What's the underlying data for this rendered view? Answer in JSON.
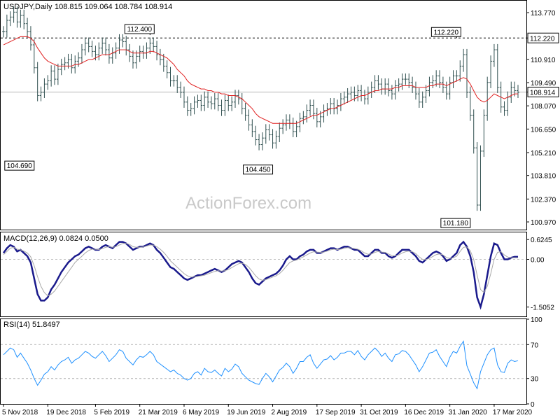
{
  "chart_data": [
    {
      "type": "ohlc",
      "title": "USDJPY,Daily",
      "ohlc_text": "108.815 109.064 108.784 108.914",
      "ohlc": {
        "open": 108.815,
        "high": 109.064,
        "low": 108.784,
        "close": 108.914
      },
      "watermark": "ActionForex.com",
      "ylim": [
        100.5,
        114.5
      ],
      "yticks": [
        113.77,
        112.22,
        110.91,
        109.49,
        108.914,
        108.07,
        106.65,
        105.21,
        103.81,
        102.37,
        100.97
      ],
      "ytick_labels": [
        "113.770",
        "112.220",
        "110.910",
        "109.490",
        "108.914",
        "108.070",
        "106.650",
        "105.210",
        "103.810",
        "102.370",
        "100.970"
      ],
      "hlines": [
        {
          "value": 112.22,
          "style": "dashed",
          "color": "#000000"
        },
        {
          "value": 108.914,
          "style": "solid",
          "color": "#b4b4b4"
        }
      ],
      "axis_boxes": [
        {
          "value": 112.22,
          "text": "112.220"
        },
        {
          "value": 108.914,
          "text": "108.914"
        }
      ],
      "annotations": [
        {
          "text": "104.690",
          "x_index": 9,
          "value": 104.69
        },
        {
          "text": "112.400",
          "x_index": 43,
          "value": 112.4
        },
        {
          "text": "104.450",
          "x_index": 79,
          "value": 104.45
        },
        {
          "text": "112.220",
          "x_index": 133,
          "value": 112.22
        },
        {
          "text": "101.180",
          "x_index": 137,
          "value": 101.18
        }
      ],
      "series": [
        {
          "name": "price",
          "color": "#2f4f4f",
          "values": [
            112.6,
            113.3,
            113.5,
            113.8,
            113.2,
            113.6,
            113.1,
            112.6,
            111.8,
            110.4,
            108.7,
            108.9,
            109.4,
            109.6,
            110.2,
            109.7,
            110.3,
            110.6,
            110.7,
            110.9,
            110.4,
            110.8,
            111.0,
            111.5,
            111.9,
            111.7,
            111.4,
            111.2,
            111.6,
            111.9,
            111.5,
            111.0,
            111.3,
            111.6,
            112.1,
            112.0,
            111.5,
            111.1,
            110.7,
            111.1,
            111.4,
            111.3,
            111.6,
            111.9,
            111.7,
            111.2,
            110.9,
            110.5,
            110.1,
            109.6,
            109.6,
            109.2,
            108.9,
            108.3,
            107.8,
            107.9,
            108.3,
            108.4,
            108.1,
            108.6,
            108.3,
            108.2,
            108.5,
            108.1,
            107.8,
            108.4,
            108.1,
            108.3,
            108.7,
            108.5,
            107.9,
            107.5,
            106.9,
            106.5,
            106.0,
            105.7,
            106.1,
            106.6,
            106.3,
            105.8,
            106.2,
            106.7,
            106.9,
            107.2,
            107.0,
            106.5,
            106.8,
            107.3,
            107.4,
            107.8,
            108.1,
            107.6,
            107.1,
            107.4,
            107.8,
            107.9,
            108.2,
            107.9,
            108.1,
            108.5,
            108.6,
            108.8,
            108.9,
            108.7,
            109.0,
            108.7,
            108.5,
            108.9,
            109.2,
            109.6,
            109.4,
            109.1,
            109.4,
            109.0,
            108.8,
            109.3,
            109.4,
            109.7,
            109.7,
            109.5,
            109.2,
            108.8,
            108.3,
            108.6,
            109.0,
            109.5,
            109.6,
            109.9,
            109.5,
            109.2,
            108.8,
            109.5,
            109.9,
            109.9,
            110.5,
            111.2,
            108.9,
            107.5,
            105.5,
            102.0,
            105.3,
            107.5,
            109.5,
            110.8,
            111.5,
            109.2,
            108.0,
            107.8,
            108.6,
            109.2,
            109.0,
            108.9
          ]
        },
        {
          "name": "SMA",
          "color": "#e02020",
          "values": [
            111.8,
            111.9,
            112.0,
            112.1,
            112.2,
            112.3,
            112.3,
            112.3,
            112.2,
            112.0,
            111.6,
            111.3,
            111.0,
            110.8,
            110.7,
            110.6,
            110.5,
            110.5,
            110.5,
            110.5,
            110.5,
            110.6,
            110.6,
            110.7,
            110.8,
            110.9,
            110.9,
            111.0,
            111.1,
            111.2,
            111.2,
            111.2,
            111.3,
            111.4,
            111.5,
            111.5,
            111.5,
            111.4,
            111.3,
            111.3,
            111.3,
            111.3,
            111.3,
            111.4,
            111.4,
            111.3,
            111.2,
            111.1,
            111.0,
            110.8,
            110.6,
            110.3,
            110.1,
            109.9,
            109.6,
            109.4,
            109.3,
            109.2,
            109.1,
            109.1,
            109.0,
            109.0,
            108.9,
            108.9,
            108.8,
            108.8,
            108.7,
            108.7,
            108.7,
            108.6,
            108.5,
            108.3,
            108.1,
            107.9,
            107.6,
            107.4,
            107.3,
            107.2,
            107.1,
            107.0,
            107.0,
            107.0,
            107.0,
            107.0,
            107.0,
            107.0,
            107.0,
            107.1,
            107.2,
            107.3,
            107.4,
            107.5,
            107.5,
            107.6,
            107.7,
            107.8,
            107.9,
            107.9,
            108.0,
            108.1,
            108.2,
            108.3,
            108.4,
            108.5,
            108.6,
            108.7,
            108.7,
            108.8,
            108.9,
            109.0,
            109.0,
            109.1,
            109.1,
            109.1,
            109.1,
            109.2,
            109.2,
            109.3,
            109.3,
            109.3,
            109.3,
            109.2,
            109.2,
            109.2,
            109.2,
            109.3,
            109.3,
            109.4,
            109.4,
            109.4,
            109.3,
            109.4,
            109.5,
            109.6,
            109.7,
            109.8,
            109.7,
            109.4,
            109.0,
            108.6,
            108.4,
            108.3,
            108.4,
            108.6,
            108.8,
            108.7,
            108.6,
            108.5,
            108.6,
            108.7,
            108.8,
            108.8
          ]
        }
      ]
    },
    {
      "type": "line",
      "title": "MACD(12,26,9) 0.0824 0.0500",
      "ylim": [
        -1.8,
        0.85
      ],
      "yticks": [
        0.6245,
        0.0,
        -1.5052
      ],
      "ytick_labels": [
        "0.6245",
        "0.00",
        "-1.5052"
      ],
      "series": [
        {
          "name": "MACD",
          "color": "#1a1a8c",
          "values": [
            0.2,
            0.35,
            0.45,
            0.4,
            0.25,
            0.3,
            0.2,
            0.1,
            -0.1,
            -0.6,
            -1.1,
            -1.3,
            -1.3,
            -1.2,
            -0.95,
            -0.8,
            -0.6,
            -0.4,
            -0.25,
            -0.1,
            0.0,
            0.1,
            0.15,
            0.25,
            0.35,
            0.4,
            0.35,
            0.3,
            0.3,
            0.4,
            0.45,
            0.4,
            0.35,
            0.45,
            0.55,
            0.55,
            0.5,
            0.4,
            0.3,
            0.35,
            0.4,
            0.4,
            0.45,
            0.5,
            0.45,
            0.3,
            0.2,
            0.05,
            -0.1,
            -0.25,
            -0.3,
            -0.4,
            -0.5,
            -0.6,
            -0.65,
            -0.6,
            -0.55,
            -0.5,
            -0.5,
            -0.45,
            -0.4,
            -0.35,
            -0.3,
            -0.35,
            -0.4,
            -0.35,
            -0.25,
            -0.15,
            -0.1,
            -0.05,
            -0.1,
            -0.25,
            -0.4,
            -0.6,
            -0.75,
            -0.8,
            -0.7,
            -0.6,
            -0.55,
            -0.5,
            -0.45,
            -0.35,
            -0.2,
            0.0,
            0.1,
            0.0,
            0.0,
            0.1,
            0.15,
            0.25,
            0.3,
            0.3,
            0.2,
            0.2,
            0.25,
            0.3,
            0.35,
            0.35,
            0.3,
            0.35,
            0.4,
            0.4,
            0.35,
            0.3,
            0.3,
            0.2,
            0.1,
            0.1,
            0.2,
            0.3,
            0.3,
            0.2,
            0.2,
            0.1,
            0.05,
            0.1,
            0.2,
            0.3,
            0.3,
            0.3,
            0.2,
            0.1,
            -0.05,
            -0.1,
            0.0,
            0.1,
            0.2,
            0.25,
            0.2,
            0.1,
            -0.05,
            0.0,
            0.1,
            0.2,
            0.45,
            0.55,
            0.4,
            0.1,
            -0.4,
            -1.2,
            -1.5,
            -1.1,
            -0.5,
            0.1,
            0.5,
            0.45,
            0.2,
            0.0,
            0.0,
            0.05,
            0.08,
            0.08
          ]
        },
        {
          "name": "Signal",
          "color": "#a9a9a9",
          "values": [
            0.15,
            0.25,
            0.35,
            0.38,
            0.32,
            0.3,
            0.26,
            0.2,
            0.08,
            -0.2,
            -0.55,
            -0.85,
            -1.05,
            -1.15,
            -1.1,
            -1.0,
            -0.85,
            -0.7,
            -0.55,
            -0.4,
            -0.25,
            -0.1,
            0.0,
            0.1,
            0.2,
            0.28,
            0.32,
            0.32,
            0.31,
            0.34,
            0.38,
            0.4,
            0.38,
            0.4,
            0.45,
            0.5,
            0.5,
            0.47,
            0.4,
            0.38,
            0.38,
            0.39,
            0.42,
            0.45,
            0.45,
            0.4,
            0.32,
            0.22,
            0.1,
            -0.05,
            -0.15,
            -0.25,
            -0.35,
            -0.45,
            -0.52,
            -0.56,
            -0.56,
            -0.54,
            -0.52,
            -0.5,
            -0.46,
            -0.42,
            -0.38,
            -0.36,
            -0.37,
            -0.36,
            -0.32,
            -0.26,
            -0.2,
            -0.14,
            -0.12,
            -0.16,
            -0.25,
            -0.38,
            -0.52,
            -0.62,
            -0.66,
            -0.64,
            -0.6,
            -0.56,
            -0.52,
            -0.45,
            -0.35,
            -0.22,
            -0.1,
            -0.05,
            -0.02,
            0.03,
            0.08,
            0.14,
            0.2,
            0.24,
            0.23,
            0.22,
            0.23,
            0.26,
            0.3,
            0.32,
            0.31,
            0.32,
            0.35,
            0.37,
            0.36,
            0.34,
            0.32,
            0.27,
            0.2,
            0.16,
            0.17,
            0.22,
            0.25,
            0.23,
            0.22,
            0.17,
            0.12,
            0.11,
            0.14,
            0.2,
            0.24,
            0.26,
            0.24,
            0.18,
            0.08,
            0.0,
            -0.01,
            0.03,
            0.09,
            0.15,
            0.17,
            0.14,
            0.06,
            0.03,
            0.05,
            0.1,
            0.25,
            0.38,
            0.39,
            0.27,
            0.0,
            -0.5,
            -0.95,
            -1.05,
            -0.85,
            -0.45,
            0.0,
            0.22,
            0.24,
            0.14,
            0.07,
            0.05,
            0.05,
            0.05
          ]
        }
      ]
    },
    {
      "type": "line",
      "title": "RSI(14) 51.8497",
      "ylim": [
        0,
        100
      ],
      "yticks": [
        100,
        70,
        30,
        0
      ],
      "ytick_labels": [
        "100",
        "70",
        "30",
        "0"
      ],
      "hlines": [
        {
          "value": 70,
          "style": "dashed"
        },
        {
          "value": 30,
          "style": "dashed"
        }
      ],
      "series": [
        {
          "name": "RSI",
          "color": "#1e90ff",
          "values": [
            58,
            62,
            66,
            64,
            55,
            60,
            54,
            48,
            40,
            30,
            22,
            28,
            35,
            38,
            44,
            40,
            46,
            50,
            52,
            55,
            48,
            52,
            54,
            58,
            62,
            60,
            56,
            54,
            58,
            62,
            57,
            50,
            54,
            58,
            64,
            62,
            54,
            50,
            46,
            52,
            56,
            55,
            58,
            62,
            58,
            50,
            47,
            44,
            41,
            38,
            40,
            36,
            34,
            30,
            28,
            30,
            36,
            38,
            34,
            42,
            38,
            37,
            40,
            36,
            33,
            42,
            38,
            41,
            47,
            44,
            36,
            32,
            28,
            26,
            24,
            23,
            30,
            36,
            32,
            26,
            33,
            40,
            43,
            48,
            44,
            36,
            42,
            50,
            50,
            55,
            58,
            48,
            42,
            47,
            52,
            53,
            57,
            52,
            55,
            60,
            60,
            62,
            62,
            58,
            63,
            56,
            52,
            58,
            62,
            66,
            62,
            56,
            60,
            54,
            50,
            58,
            59,
            63,
            62,
            58,
            52,
            46,
            38,
            44,
            52,
            60,
            61,
            64,
            56,
            50,
            44,
            55,
            62,
            60,
            68,
            74,
            45,
            35,
            25,
            18,
            38,
            48,
            58,
            64,
            66,
            46,
            38,
            37,
            48,
            52,
            50,
            51
          ]
        }
      ]
    }
  ],
  "x_axis": {
    "tick_labels": [
      "5 Nov 2018",
      "19 Dec 2018",
      "5 Feb 2019",
      "21 Mar 2019",
      "6 May 2019",
      "19 Jun 2019",
      "2 Aug 2019",
      "17 Sep 2019",
      "31 Oct 2019",
      "16 Dec 2019",
      "31 Jan 2020",
      "17 Mar 2020"
    ],
    "tick_indices": [
      0,
      13,
      27,
      40,
      53,
      66,
      79,
      92,
      105,
      118,
      131,
      144
    ]
  },
  "colors": {
    "frame": "#000000",
    "grid_line": "#b4b4b4",
    "background": "#ffffff"
  }
}
